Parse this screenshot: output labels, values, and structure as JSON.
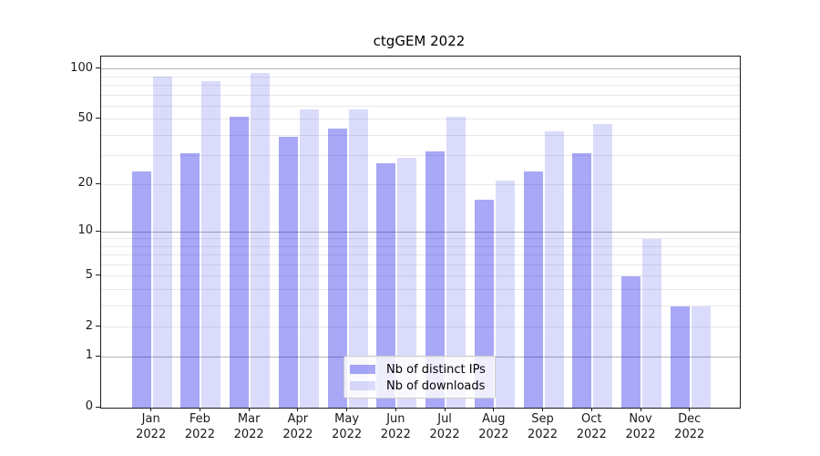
{
  "title": "ctgGEM 2022",
  "chart_data": {
    "type": "bar",
    "title": "ctgGEM 2022",
    "x": {
      "months": [
        "Jan",
        "Feb",
        "Mar",
        "Apr",
        "May",
        "Jun",
        "Jul",
        "Aug",
        "Sep",
        "Oct",
        "Nov",
        "Dec"
      ],
      "year": "2022"
    },
    "series": [
      {
        "name": "Nb of distinct IPs",
        "color": "rgba(0,0,230,0.34)",
        "values": [
          24,
          31,
          52,
          39,
          44,
          27,
          32,
          16,
          24,
          31,
          5,
          3
        ]
      },
      {
        "name": "Nb of downloads",
        "color": "rgba(0,0,230,0.14)",
        "values": [
          90,
          85,
          95,
          57,
          57,
          29,
          52,
          21,
          42,
          47,
          9,
          3
        ]
      }
    ],
    "yaxis": {
      "scale": "log1p",
      "tick_values": [
        0,
        1,
        2,
        5,
        10,
        20,
        50,
        100
      ],
      "major_grid_values": [
        1,
        10,
        100
      ],
      "minor_grid_values": [
        2,
        3,
        4,
        5,
        6,
        7,
        8,
        9,
        20,
        30,
        40,
        50,
        60,
        70,
        80,
        90
      ],
      "ylim": [
        0,
        119
      ]
    },
    "legend": {
      "position": "lower center",
      "entries": [
        "Nb of distinct IPs",
        "Nb of downloads"
      ]
    },
    "grid": true
  },
  "colors": {
    "ips_bar": "rgba(0,0,230,0.34)",
    "downloads_bar": "rgba(0,0,230,0.14)",
    "major_grid": "#b3b3b3",
    "minor_grid": "#e9e9e9",
    "frame": "#1c1c1c",
    "text": "#1a1a1a",
    "background": "#ffffff"
  }
}
